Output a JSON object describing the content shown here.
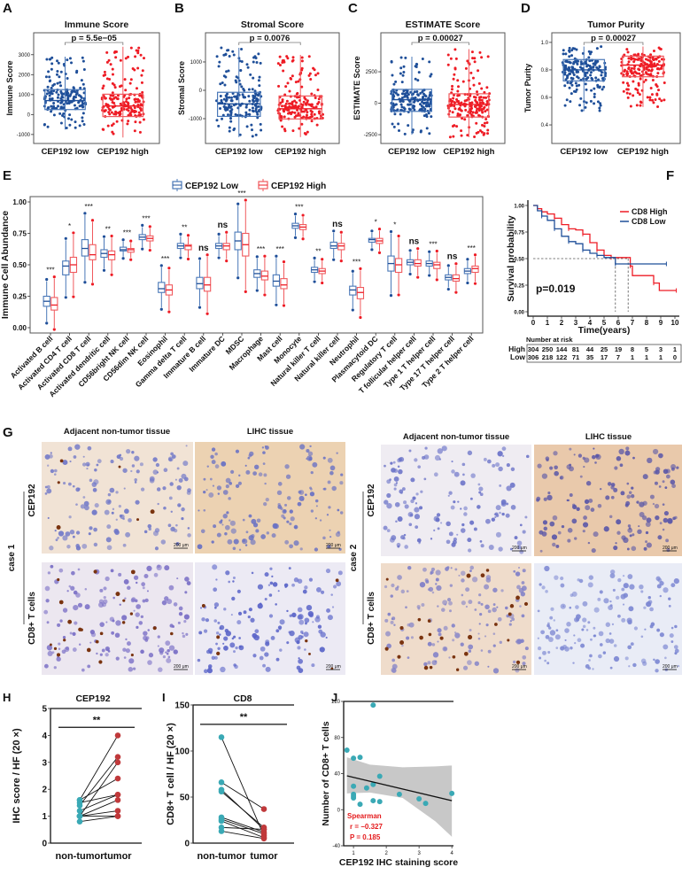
{
  "colors": {
    "low": "#1f4f99",
    "low_box": "#4a78b8",
    "high": "#ee1c25",
    "high_box": "#f05a5e",
    "teal": "#3aa9b5",
    "brick": "#c0393b",
    "ci": "#c8c8c8"
  },
  "chart_data": [
    {
      "type": "box",
      "panel": "A",
      "title": "Immune Score",
      "ylabel": "Immune Score",
      "ylim": [
        -1450,
        4100
      ],
      "yticks": [
        -1000,
        0,
        1000,
        2000,
        3000
      ],
      "ytick_labels": [
        "-1000",
        "0",
        "1000",
        "2000",
        "3000"
      ],
      "categories": [
        "CEP192 low",
        "CEP192 high"
      ],
      "p_label": "p = 5.5e−05",
      "groups": [
        {
          "name": "CEP192 low",
          "q1": 250,
          "median": 700,
          "q3": 1250,
          "whisker_low": -750,
          "whisker_high": 2900,
          "n": 180
        },
        {
          "name": "CEP192 high",
          "q1": -100,
          "median": 430,
          "q3": 1020,
          "whisker_low": -1150,
          "whisker_high": 3400,
          "n": 180
        }
      ]
    },
    {
      "type": "box",
      "panel": "B",
      "title": "Stromal Score",
      "ylabel": "Stromal Score",
      "ylim": [
        -1875,
        2030
      ],
      "yticks": [
        -1000,
        0,
        1000
      ],
      "ytick_labels": [
        "-1000",
        "0",
        "1000"
      ],
      "categories": [
        "CEP192 low",
        "CEP192 high"
      ],
      "p_label": "p = 0.0076",
      "groups": [
        {
          "name": "CEP192 low",
          "q1": -920,
          "median": -480,
          "q3": -70,
          "whisker_low": -1650,
          "whisker_high": 1500,
          "n": 180
        },
        {
          "name": "CEP192 high",
          "q1": -1010,
          "median": -650,
          "q3": -200,
          "whisker_low": -1650,
          "whisker_high": 1250,
          "n": 180
        }
      ]
    },
    {
      "type": "box",
      "panel": "C",
      "title": "ESTIMATE Score",
      "ylabel": "ESTIMATE Score",
      "ylim": [
        -3200,
        5600
      ],
      "yticks": [
        -2500,
        0,
        2500
      ],
      "ytick_labels": [
        "-2500",
        "0",
        "2500"
      ],
      "categories": [
        "CEP192 low",
        "CEP192 high"
      ],
      "p_label": "p = 0.00027",
      "groups": [
        {
          "name": "CEP192 low",
          "q1": -650,
          "median": 280,
          "q3": 1100,
          "whisker_low": -2500,
          "whisker_high": 3700,
          "n": 180
        },
        {
          "name": "CEP192 high",
          "q1": -1100,
          "median": -100,
          "q3": 750,
          "whisker_low": -2700,
          "whisker_high": 4300,
          "n": 180
        }
      ]
    },
    {
      "type": "box",
      "panel": "D",
      "title": "Tumor Purity",
      "ylabel": "Tumor Purity",
      "ylim": [
        0.265,
        1.07
      ],
      "yticks": [
        0.4,
        0.6,
        0.8,
        1.0
      ],
      "ytick_labels": [
        "0.4",
        "0.6",
        "0.8",
        "1.0"
      ],
      "categories": [
        "CEP192 low",
        "CEP192 high"
      ],
      "p_label": "p = 0.00027",
      "groups": [
        {
          "name": "CEP192 low",
          "q1": 0.72,
          "median": 0.8,
          "q3": 0.875,
          "whisker_low": 0.5,
          "whisker_high": 0.97,
          "n": 180
        },
        {
          "name": "CEP192 high",
          "q1": 0.75,
          "median": 0.835,
          "q3": 0.9,
          "whisker_low": 0.53,
          "whisker_high": 0.97,
          "n": 180
        }
      ]
    },
    {
      "type": "box",
      "panel": "E",
      "ylabel": "Immune Cell Abundance",
      "ylim": [
        -0.04,
        1.06
      ],
      "yticks": [
        0,
        0.25,
        0.5,
        0.75,
        1.0
      ],
      "ytick_labels": [
        "0.00",
        "0.25",
        "0.50",
        "0.75",
        "1.00"
      ],
      "legend": [
        "CEP192 Low",
        "CEP192 High"
      ],
      "legend_position": "top",
      "categories": [
        "Activated B cell",
        "Activated CD4 T cell",
        "Activated CD8 T cell",
        "Activated dendritic cell",
        "CD56bright NK cell",
        "CD56dim NK cell",
        "Eosinophil",
        "Gamma delta T cell",
        "Immature B cell",
        "Immature DC",
        "MDSC",
        "Macrophage",
        "Mast cell",
        "Monocyte",
        "Natural killer T cell",
        "Natural killer cell",
        "Neutrophil",
        "Plasmacytoid DC",
        "Regulatory T cell",
        "T follicular helper cell",
        "Type 1 T helper cell",
        "Type 17 T helper cell",
        "Type 2 T helper cell"
      ],
      "low_q1_median_q3": [
        [
          0.17,
          0.21,
          0.25
        ],
        [
          0.42,
          0.49,
          0.53
        ],
        [
          0.57,
          0.63,
          0.7
        ],
        [
          0.56,
          0.59,
          0.62
        ],
        [
          0.61,
          0.62,
          0.64
        ],
        [
          0.7,
          0.72,
          0.74
        ],
        [
          0.28,
          0.31,
          0.36
        ],
        [
          0.63,
          0.65,
          0.67
        ],
        [
          0.31,
          0.35,
          0.4
        ],
        [
          0.63,
          0.65,
          0.67
        ],
        [
          0.62,
          0.69,
          0.76
        ],
        [
          0.4,
          0.43,
          0.46
        ],
        [
          0.33,
          0.37,
          0.42
        ],
        [
          0.79,
          0.81,
          0.83
        ],
        [
          0.44,
          0.46,
          0.48
        ],
        [
          0.63,
          0.65,
          0.68
        ],
        [
          0.26,
          0.3,
          0.33
        ],
        [
          0.68,
          0.7,
          0.71
        ],
        [
          0.45,
          0.51,
          0.57
        ],
        [
          0.5,
          0.52,
          0.54
        ],
        [
          0.49,
          0.51,
          0.53
        ],
        [
          0.38,
          0.4,
          0.42
        ],
        [
          0.43,
          0.45,
          0.47
        ]
      ],
      "high_q1_median_q3": [
        [
          0.14,
          0.18,
          0.24
        ],
        [
          0.44,
          0.5,
          0.56
        ],
        [
          0.54,
          0.58,
          0.66
        ],
        [
          0.54,
          0.58,
          0.61
        ],
        [
          0.6,
          0.62,
          0.63
        ],
        [
          0.69,
          0.71,
          0.73
        ],
        [
          0.26,
          0.3,
          0.34
        ],
        [
          0.62,
          0.65,
          0.66
        ],
        [
          0.29,
          0.34,
          0.4
        ],
        [
          0.62,
          0.65,
          0.67
        ],
        [
          0.57,
          0.66,
          0.75
        ],
        [
          0.38,
          0.41,
          0.45
        ],
        [
          0.31,
          0.34,
          0.39
        ],
        [
          0.78,
          0.8,
          0.82
        ],
        [
          0.43,
          0.45,
          0.47
        ],
        [
          0.62,
          0.65,
          0.67
        ],
        [
          0.23,
          0.28,
          0.32
        ],
        [
          0.67,
          0.69,
          0.71
        ],
        [
          0.44,
          0.5,
          0.55
        ],
        [
          0.49,
          0.51,
          0.54
        ],
        [
          0.47,
          0.5,
          0.52
        ],
        [
          0.37,
          0.39,
          0.42
        ],
        [
          0.44,
          0.47,
          0.49
        ]
      ],
      "significance": [
        "***",
        "*",
        "***",
        "**",
        "***",
        "***",
        "***",
        "**",
        "ns",
        "ns",
        "***",
        "***",
        "***",
        "***",
        "**",
        "ns",
        "***",
        "*",
        "*",
        "ns",
        "***",
        "ns",
        "***"
      ]
    },
    {
      "type": "line",
      "panel": "F",
      "subtype": "kaplan-meier",
      "xlabel": "Time(years)",
      "ylabel": "Survival probability",
      "xlim": [
        0,
        10
      ],
      "ylim": [
        0,
        1
      ],
      "xticks": [
        0,
        1,
        2,
        3,
        4,
        5,
        6,
        7,
        8,
        9,
        10
      ],
      "xtick_labels": [
        "0",
        "1",
        "2",
        "3",
        "4",
        "5",
        "6",
        "7",
        "8",
        "9",
        "10"
      ],
      "yticks": [
        0,
        0.25,
        0.5,
        0.75,
        1.0
      ],
      "ytick_labels": [
        "0.00",
        "0.25",
        "0.50",
        "0.75",
        "1.00"
      ],
      "legend": [
        "CD8 High",
        "CD8 Low"
      ],
      "legend_position": "top-right",
      "series": [
        {
          "name": "CD8 High",
          "x": [
            0,
            0.3,
            0.6,
            1,
            1.5,
            2,
            2.5,
            3,
            3.5,
            4,
            4.5,
            5,
            5.5,
            6.7,
            6.85,
            7,
            8.5,
            8.9,
            10.1
          ],
          "y": [
            1,
            0.97,
            0.94,
            0.92,
            0.88,
            0.82,
            0.78,
            0.77,
            0.73,
            0.65,
            0.58,
            0.53,
            0.51,
            0.51,
            0.43,
            0.34,
            0.27,
            0.2,
            0.2
          ]
        },
        {
          "name": "CD8 Low",
          "x": [
            0,
            0.3,
            0.6,
            1,
            1.5,
            2,
            2.5,
            3,
            3.5,
            4,
            4.5,
            5,
            5.8,
            6,
            9.4
          ],
          "y": [
            1,
            0.95,
            0.9,
            0.86,
            0.78,
            0.71,
            0.66,
            0.64,
            0.58,
            0.55,
            0.53,
            0.51,
            0.45,
            0.45,
            0.45
          ]
        }
      ],
      "median_survival": [
        5.8,
        6.7
      ],
      "p_label": "p=0.019",
      "risk_table": {
        "title": "Number at risk",
        "rows": [
          {
            "label": "High",
            "values": [
              "304",
              "250",
              "144",
              "81",
              "44",
              "25",
              "19",
              "8",
              "5",
              "3",
              "1"
            ]
          },
          {
            "label": "Low",
            "values": [
              "306",
              "218",
              "122",
              "71",
              "35",
              "17",
              "7",
              "1",
              "1",
              "1",
              "0"
            ]
          }
        ]
      }
    },
    {
      "type": "scatter",
      "subtype": "paired",
      "panel": "H",
      "title": "CEP192",
      "ylabel": "IHC score / HF (20 ×)",
      "categories": [
        "non-tumor",
        "tumor"
      ],
      "ylim": [
        0,
        5
      ],
      "yticks": [
        0,
        1,
        2,
        3,
        4,
        5
      ],
      "ytick_labels": [
        "0",
        "1",
        "2",
        "3",
        "4",
        "5"
      ],
      "pairs": [
        [
          0.8,
          1.0
        ],
        [
          1.0,
          1.0
        ],
        [
          1.0,
          1.2
        ],
        [
          1.0,
          1.6
        ],
        [
          1.0,
          3.0
        ],
        [
          1.2,
          1.8
        ],
        [
          1.4,
          3.2
        ],
        [
          1.5,
          1.8
        ],
        [
          1.6,
          2.4
        ],
        [
          1.6,
          4.0
        ]
      ],
      "significance": "**",
      "sig_level": 4.3
    },
    {
      "type": "scatter",
      "subtype": "paired",
      "panel": "I",
      "title": "CD8",
      "ylabel": "CD8+ T cell / HF (20 ×)",
      "categories": [
        "non-tumor",
        "tumor"
      ],
      "ylim": [
        0,
        150
      ],
      "yticks": [
        0,
        50,
        100,
        150
      ],
      "ytick_labels": [
        "0",
        "50",
        "100",
        "150"
      ],
      "pairs": [
        [
          115,
          8
        ],
        [
          66,
          37
        ],
        [
          58,
          15
        ],
        [
          56,
          17
        ],
        [
          28,
          12
        ],
        [
          26,
          10
        ],
        [
          24,
          6
        ],
        [
          17,
          15
        ],
        [
          13,
          5
        ]
      ],
      "significance": "**",
      "sig_level": 129
    },
    {
      "type": "scatter",
      "panel": "J",
      "xlabel": "CEP192 IHC staining score",
      "ylabel": "Number of CD8+ T cells",
      "xlim": [
        0.7,
        4.05
      ],
      "ylim": [
        -40,
        120
      ],
      "xticks": [
        1,
        2,
        3,
        4
      ],
      "xtick_labels": [
        "1",
        "2",
        "3",
        "4"
      ],
      "yticks": [
        -40,
        0,
        40,
        80,
        120
      ],
      "ytick_labels": [
        "-40",
        "0",
        "40",
        "80",
        "120"
      ],
      "points": [
        [
          0.8,
          66
        ],
        [
          1,
          57
        ],
        [
          1.2,
          58
        ],
        [
          1,
          26
        ],
        [
          1,
          17
        ],
        [
          1,
          15
        ],
        [
          1,
          13
        ],
        [
          1.2,
          6
        ],
        [
          1.4,
          24
        ],
        [
          1.6,
          28
        ],
        [
          1.6,
          116
        ],
        [
          1.6,
          10
        ],
        [
          1.8,
          37
        ],
        [
          1.8,
          9
        ],
        [
          2.4,
          17
        ],
        [
          3,
          12
        ],
        [
          3.2,
          7
        ],
        [
          4,
          18
        ]
      ],
      "fit_line": {
        "x": [
          0.8,
          4
        ],
        "y": [
          37.5,
          10
        ]
      },
      "ci_band": {
        "x": [
          0.8,
          1.5,
          2.5,
          3.5,
          4
        ],
        "upper": [
          58,
          50,
          47,
          48,
          49
        ],
        "lower": [
          18,
          19,
          13,
          -13,
          -30
        ]
      },
      "annotation": [
        "Spearman",
        "r = −0.327",
        "P = 0.185"
      ]
    }
  ],
  "ihc": {
    "label": "G",
    "scale_bar": "200 μm",
    "cases": [
      {
        "case": "case 1",
        "columns": [
          "Adjacent non-tumor tissue",
          "LIHC tissue"
        ],
        "rows": [
          "CEP192",
          "CD8+ T cells"
        ]
      },
      {
        "case": "case 2",
        "columns": [
          "Adjacent non-tumor tissue",
          "LIHC tissue"
        ],
        "rows": [
          "CEP192",
          "CD8+ T cells"
        ]
      }
    ]
  }
}
